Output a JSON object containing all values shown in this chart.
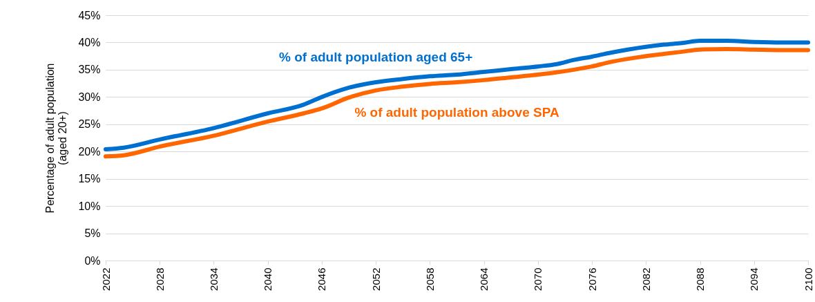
{
  "chart_data": {
    "type": "line",
    "ylabel": "Percentage of adult population\n(aged 20+)",
    "x": [
      2022,
      2024,
      2028,
      2034,
      2040,
      2044,
      2046,
      2049,
      2052,
      2055,
      2058,
      2061,
      2064,
      2067,
      2070,
      2072,
      2074,
      2076,
      2078,
      2080,
      2082,
      2084,
      2086,
      2088,
      2091,
      2094,
      2097,
      2100
    ],
    "series": [
      {
        "name": "% of adult population aged 65+",
        "color": "#0070d0",
        "values": [
          20.4,
          20.7,
          22.2,
          24.3,
          27.0,
          28.6,
          30.0,
          31.7,
          32.7,
          33.3,
          33.8,
          34.1,
          34.6,
          35.1,
          35.6,
          36.0,
          36.8,
          37.4,
          38.1,
          38.7,
          39.2,
          39.6,
          39.9,
          40.3,
          40.3,
          40.1,
          40.0,
          40.0
        ]
      },
      {
        "name": "% of adult population above SPA",
        "color": "#ff6600",
        "values": [
          19.1,
          19.3,
          20.9,
          22.9,
          25.5,
          27.0,
          27.9,
          29.9,
          31.2,
          31.9,
          32.4,
          32.7,
          33.1,
          33.6,
          34.1,
          34.5,
          35.0,
          35.6,
          36.4,
          37.0,
          37.5,
          37.9,
          38.3,
          38.7,
          38.8,
          38.7,
          38.6,
          38.6
        ]
      }
    ],
    "xlim": [
      2022,
      2100
    ],
    "xticks": [
      2022,
      2028,
      2034,
      2040,
      2046,
      2052,
      2058,
      2064,
      2070,
      2076,
      2082,
      2088,
      2094,
      2100
    ],
    "ylim": [
      0,
      45
    ],
    "yticks": [
      {
        "value": 0,
        "label": "0%"
      },
      {
        "value": 5,
        "label": "5%"
      },
      {
        "value": 10,
        "label": "10%"
      },
      {
        "value": 15,
        "label": "15%"
      },
      {
        "value": 20,
        "label": "20%"
      },
      {
        "value": 25,
        "label": "25%"
      },
      {
        "value": 30,
        "label": "30%"
      },
      {
        "value": 35,
        "label": "35%"
      },
      {
        "value": 40,
        "label": "40%"
      },
      {
        "value": 45,
        "label": "45%"
      }
    ],
    "grid": "y",
    "legend": false,
    "marker": "none",
    "line_style": "solid"
  }
}
